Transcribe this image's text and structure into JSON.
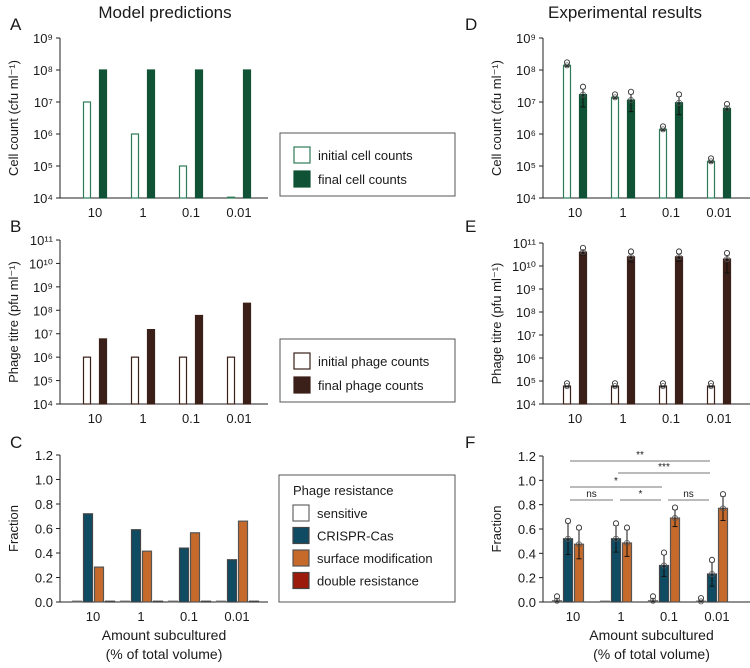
{
  "titles": {
    "left": "Model predictions",
    "right": "Experimental results"
  },
  "colors": {
    "cell_initial": "#2f7a58",
    "cell_final": "#0f5236",
    "phage_initial": "#3a2019",
    "phage_final": "#3a2019",
    "sensitive": "#ffffff",
    "crispr": "#0f4c63",
    "surface": "#c66a2c",
    "double": "#9b1a0c"
  },
  "categories": [
    "10",
    "1",
    "0.1",
    "0.01"
  ],
  "xlabel": [
    "Amount subcultured",
    "(% of total volume)"
  ],
  "legends": {
    "cell": [
      "initial cell counts",
      "final cell counts"
    ],
    "phage": [
      "initial phage counts",
      "final phage counts"
    ],
    "resistance": {
      "title": "Phage resistance",
      "items": [
        "sensitive",
        "CRISPR-Cas",
        "surface modification",
        "double resistance"
      ]
    }
  },
  "chart_data": [
    {
      "panel": "A",
      "type": "bar",
      "scale": "log",
      "ylabel": "Cell count (cfu ml⁻¹)",
      "ylim": [
        4,
        9
      ],
      "series": [
        {
          "name": "initial cell counts",
          "values": [
            10000000.0,
            1000000.0,
            100000.0,
            10500.0
          ]
        },
        {
          "name": "final cell counts",
          "values": [
            100000000.0,
            100000000.0,
            100000000.0,
            100000000.0
          ]
        }
      ]
    },
    {
      "panel": "B",
      "type": "bar",
      "scale": "log",
      "ylabel": "Phage titre (pfu ml⁻¹)",
      "ylim": [
        4,
        11
      ],
      "series": [
        {
          "name": "initial phage counts",
          "values": [
            1000000.0,
            1000000.0,
            1000000.0,
            1000000.0
          ]
        },
        {
          "name": "final phage counts",
          "values": [
            6000000.0,
            15000000.0,
            60000000.0,
            200000000.0
          ]
        }
      ]
    },
    {
      "panel": "C",
      "type": "bar",
      "scale": "linear",
      "ylabel": "Fraction",
      "ylim": [
        0,
        1.2
      ],
      "series": [
        {
          "name": "sensitive",
          "values": [
            0.005,
            0.005,
            0.005,
            0.005
          ]
        },
        {
          "name": "CRISPR-Cas",
          "values": [
            0.72,
            0.59,
            0.44,
            0.345
          ]
        },
        {
          "name": "surface modification",
          "values": [
            0.285,
            0.415,
            0.565,
            0.66
          ]
        },
        {
          "name": "double resistance",
          "values": [
            0.005,
            0.005,
            0.005,
            0.005
          ]
        }
      ]
    },
    {
      "panel": "D",
      "type": "bar",
      "scale": "log",
      "ylabel": "Cell count (cfu ml⁻¹)",
      "ylim": [
        4,
        9
      ],
      "series": [
        {
          "name": "initial cell counts",
          "values": [
            140000000.0,
            14000000.0,
            1400000.0,
            140000.0
          ],
          "err": [
            [
              130000000.0,
              150000000.0
            ],
            [
              13000000.0,
              15000000.0
            ],
            [
              1300000.0,
              1500000.0
            ],
            [
              130000.0,
              150000.0
            ]
          ]
        },
        {
          "name": "final cell counts",
          "values": [
            17000000.0,
            11500000.0,
            9500000.0,
            6300000.0
          ],
          "err": [
            [
              7000000.0,
              26000000.0
            ],
            [
              5000000.0,
              18000000.0
            ],
            [
              4000000.0,
              15000000.0
            ],
            [
              5500000.0,
              7500000.0
            ]
          ]
        }
      ]
    },
    {
      "panel": "E",
      "type": "bar",
      "scale": "log",
      "ylabel": "Phage titre (pfu ml⁻¹)",
      "ylim": [
        4,
        11
      ],
      "series": [
        {
          "name": "initial phage counts",
          "values": [
            60000.0,
            60000.0,
            60000.0,
            60000.0
          ],
          "err": [
            [
              55000.0,
              65000.0
            ],
            [
              55000.0,
              65000.0
            ],
            [
              55000.0,
              65000.0
            ],
            [
              55000.0,
              65000.0
            ]
          ]
        },
        {
          "name": "final phage counts",
          "values": [
            40000000000.0,
            25000000000.0,
            25000000000.0,
            20000000000.0
          ],
          "err": [
            [
              30000000000.0,
              50000000000.0
            ],
            [
              15000000000.0,
              35000000000.0
            ],
            [
              16000000000.0,
              35000000000.0
            ],
            [
              5000000000.0,
              30000000000.0
            ]
          ]
        }
      ]
    },
    {
      "panel": "F",
      "type": "bar",
      "scale": "linear",
      "ylabel": "Fraction",
      "ylim": [
        0,
        1.2
      ],
      "series": [
        {
          "name": "sensitive",
          "values": [
            0.01,
            0.0,
            0.01,
            0.005
          ],
          "sd": [
            0.02,
            0,
            0.02,
            0.01
          ]
        },
        {
          "name": "CRISPR-Cas",
          "values": [
            0.52,
            0.52,
            0.3,
            0.23
          ],
          "sd": [
            0.13,
            0.11,
            0.09,
            0.1
          ]
        },
        {
          "name": "surface modification",
          "values": [
            0.475,
            0.485,
            0.69,
            0.77
          ],
          "sd": [
            0.12,
            0.11,
            0.07,
            0.1
          ]
        }
      ],
      "significance": [
        {
          "from": "10",
          "to": "1",
          "label": "ns"
        },
        {
          "from": "1",
          "to": "0.1",
          "label": "*"
        },
        {
          "from": "0.1",
          "to": "0.01",
          "label": "ns"
        },
        {
          "from": "10",
          "to": "0.1",
          "label": "*"
        },
        {
          "from": "1",
          "to": "0.01",
          "label": "***"
        },
        {
          "from": "10",
          "to": "0.01",
          "label": "**"
        }
      ]
    }
  ]
}
